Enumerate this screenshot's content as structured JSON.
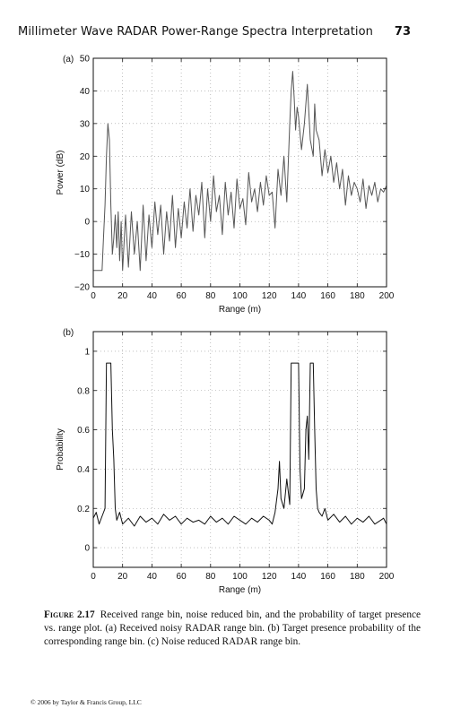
{
  "header": {
    "running_title": "Millimeter Wave RADAR Power-Range Spectra Interpretation",
    "page_number": "73"
  },
  "chart_data": [
    {
      "panel": "(a)",
      "type": "line",
      "xlabel": "Range (m)",
      "ylabel": "Power (dB)",
      "xlim": [
        0,
        200
      ],
      "ylim": [
        -20,
        50
      ],
      "xticks": [
        "0",
        "20",
        "40",
        "60",
        "80",
        "100",
        "120",
        "140",
        "160",
        "180",
        "200"
      ],
      "yticks": [
        "−20",
        "−10",
        "0",
        "10",
        "20",
        "30",
        "40",
        "50"
      ],
      "grid": "dotted",
      "series_color": "#555555",
      "x": [
        0,
        2,
        4,
        6,
        7,
        8,
        9,
        10,
        11,
        12,
        13,
        14,
        15,
        16,
        17,
        18,
        19,
        20,
        22,
        24,
        26,
        28,
        30,
        32,
        34,
        36,
        38,
        40,
        42,
        44,
        46,
        48,
        50,
        52,
        54,
        56,
        58,
        60,
        62,
        64,
        66,
        68,
        70,
        72,
        74,
        76,
        78,
        80,
        82,
        84,
        86,
        88,
        90,
        92,
        94,
        96,
        98,
        100,
        102,
        104,
        106,
        108,
        110,
        112,
        114,
        116,
        118,
        120,
        122,
        124,
        126,
        128,
        130,
        132,
        134,
        135,
        136,
        137,
        138,
        139,
        140,
        142,
        144,
        146,
        148,
        150,
        151,
        152,
        154,
        156,
        158,
        160,
        162,
        164,
        166,
        168,
        170,
        172,
        174,
        176,
        178,
        180,
        182,
        184,
        186,
        188,
        190,
        192,
        194,
        196,
        198,
        200
      ],
      "y": [
        -15,
        -15,
        -15,
        -15,
        -5,
        5,
        20,
        30,
        25,
        5,
        -10,
        -5,
        2,
        -8,
        3,
        -12,
        0,
        -15,
        2,
        -14,
        3,
        -10,
        0,
        -15,
        5,
        -12,
        2,
        -8,
        6,
        -4,
        5,
        -10,
        3,
        -6,
        8,
        -8,
        4,
        -5,
        6,
        -2,
        10,
        -3,
        8,
        2,
        12,
        -5,
        10,
        0,
        14,
        3,
        8,
        -4,
        12,
        2,
        9,
        -2,
        13,
        4,
        7,
        -1,
        15,
        6,
        10,
        3,
        12,
        5,
        14,
        8,
        9,
        -2,
        16,
        8,
        20,
        6,
        30,
        40,
        46,
        38,
        28,
        35,
        32,
        22,
        30,
        42,
        25,
        20,
        36,
        28,
        25,
        14,
        22,
        15,
        20,
        12,
        18,
        10,
        16,
        5,
        14,
        8,
        12,
        10,
        6,
        13,
        4,
        11,
        8,
        12,
        6,
        10,
        9,
        11
      ]
    },
    {
      "panel": "(b)",
      "type": "line",
      "xlabel": "Range (m)",
      "ylabel": "Probability",
      "xlim": [
        0,
        200
      ],
      "ylim": [
        -0.1,
        1.1
      ],
      "xticks": [
        "0",
        "20",
        "40",
        "60",
        "80",
        "100",
        "120",
        "140",
        "160",
        "180",
        "200"
      ],
      "yticks": [
        "0",
        "0.2",
        "0.4",
        "0.6",
        "0.8",
        "1"
      ],
      "grid": "dotted",
      "series_color": "#111111",
      "x": [
        0,
        2,
        4,
        6,
        8,
        9,
        10,
        11,
        12,
        13,
        14,
        15,
        16,
        18,
        20,
        24,
        28,
        32,
        36,
        40,
        44,
        48,
        52,
        56,
        60,
        64,
        68,
        72,
        76,
        80,
        84,
        88,
        92,
        96,
        100,
        104,
        108,
        112,
        116,
        120,
        122,
        124,
        126,
        127,
        128,
        130,
        132,
        134,
        135,
        136,
        138,
        140,
        141,
        142,
        144,
        145,
        146,
        147,
        148,
        149,
        150,
        151,
        152,
        153,
        154,
        156,
        158,
        160,
        164,
        168,
        172,
        176,
        180,
        184,
        188,
        192,
        196,
        198,
        200
      ],
      "y": [
        0.15,
        0.18,
        0.12,
        0.16,
        0.2,
        0.94,
        0.94,
        0.94,
        0.94,
        0.6,
        0.45,
        0.2,
        0.14,
        0.18,
        0.12,
        0.15,
        0.11,
        0.16,
        0.13,
        0.15,
        0.12,
        0.17,
        0.14,
        0.16,
        0.12,
        0.15,
        0.13,
        0.14,
        0.12,
        0.16,
        0.13,
        0.15,
        0.12,
        0.16,
        0.14,
        0.12,
        0.15,
        0.13,
        0.16,
        0.14,
        0.12,
        0.18,
        0.3,
        0.44,
        0.25,
        0.2,
        0.35,
        0.22,
        0.94,
        0.94,
        0.94,
        0.94,
        0.4,
        0.25,
        0.3,
        0.6,
        0.67,
        0.45,
        0.94,
        0.94,
        0.94,
        0.6,
        0.3,
        0.2,
        0.18,
        0.16,
        0.2,
        0.14,
        0.17,
        0.13,
        0.16,
        0.12,
        0.15,
        0.13,
        0.16,
        0.12,
        0.14,
        0.15,
        0.12
      ]
    }
  ],
  "caption": {
    "figure_label": "Figure 2.17",
    "text": "Received range bin, noise reduced bin, and the probability of target presence vs. range plot. (a) Received noisy RADAR range bin. (b) Target presence probability of the corresponding range bin. (c) Noise reduced RADAR range bin."
  },
  "footer": {
    "copyright": "© 2006 by Taylor & Francis Group, LLC"
  }
}
